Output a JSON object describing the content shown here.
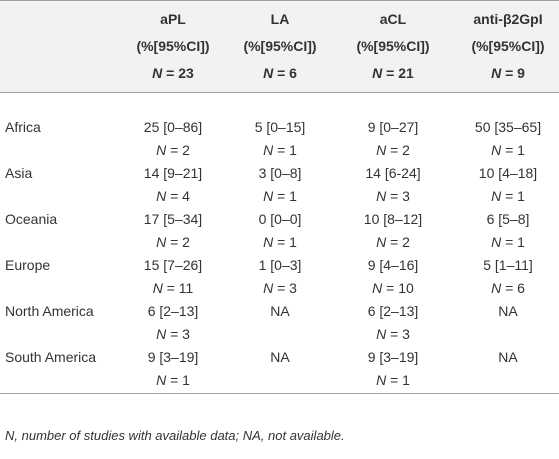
{
  "table": {
    "columns": [
      {
        "name": "aPL",
        "ci": "(%[95%CI])",
        "n": "N = 23"
      },
      {
        "name": "LA",
        "ci": "(%[95%CI])",
        "n": "N = 6"
      },
      {
        "name": "aCL",
        "ci": "(%[95%CI])",
        "n": "N = 21"
      },
      {
        "name": "anti-β2GpI",
        "ci": "(%[95%CI])",
        "n": "N = 9"
      }
    ],
    "rows": [
      {
        "region": "Africa",
        "cells": [
          {
            "value": "25 [0–86]",
            "n": "N = 2"
          },
          {
            "value": "5 [0–15]",
            "n": "N = 1"
          },
          {
            "value": "9 [0–27]",
            "n": "N = 2"
          },
          {
            "value": "50 [35–65]",
            "n": "N = 1"
          }
        ]
      },
      {
        "region": "Asia",
        "cells": [
          {
            "value": "14 [9–21]",
            "n": "N = 4"
          },
          {
            "value": "3 [0–8]",
            "n": "N = 1"
          },
          {
            "value": "14 [6-24]",
            "n": "N = 3"
          },
          {
            "value": "10 [4–18]",
            "n": "N = 1"
          }
        ]
      },
      {
        "region": "Oceania",
        "cells": [
          {
            "value": "17 [5–34]",
            "n": "N = 2"
          },
          {
            "value": "0 [0–0]",
            "n": "N = 1"
          },
          {
            "value": "10 [8–12]",
            "n": "N = 2"
          },
          {
            "value": "6 [5–8]",
            "n": "N = 1"
          }
        ]
      },
      {
        "region": "Europe",
        "cells": [
          {
            "value": "15 [7–26]",
            "n": "N = 11"
          },
          {
            "value": "1 [0–3]",
            "n": "N = 3"
          },
          {
            "value": "9 [4–16]",
            "n": "N = 10"
          },
          {
            "value": "5 [1–11]",
            "n": "N = 6"
          }
        ]
      },
      {
        "region": "North America",
        "cells": [
          {
            "value": "6 [2–13]",
            "n": "N = 3"
          },
          "NA",
          {
            "value": "6 [2–13]",
            "n": "N = 3"
          },
          "NA"
        ]
      },
      {
        "region": "South America",
        "cells": [
          {
            "value": "9 [3–19]",
            "n": "N = 1"
          },
          "NA",
          {
            "value": "9 [3–19]",
            "n": "N = 1"
          },
          "NA"
        ]
      }
    ],
    "footnote": "N, number of studies with available data; NA, not available."
  }
}
